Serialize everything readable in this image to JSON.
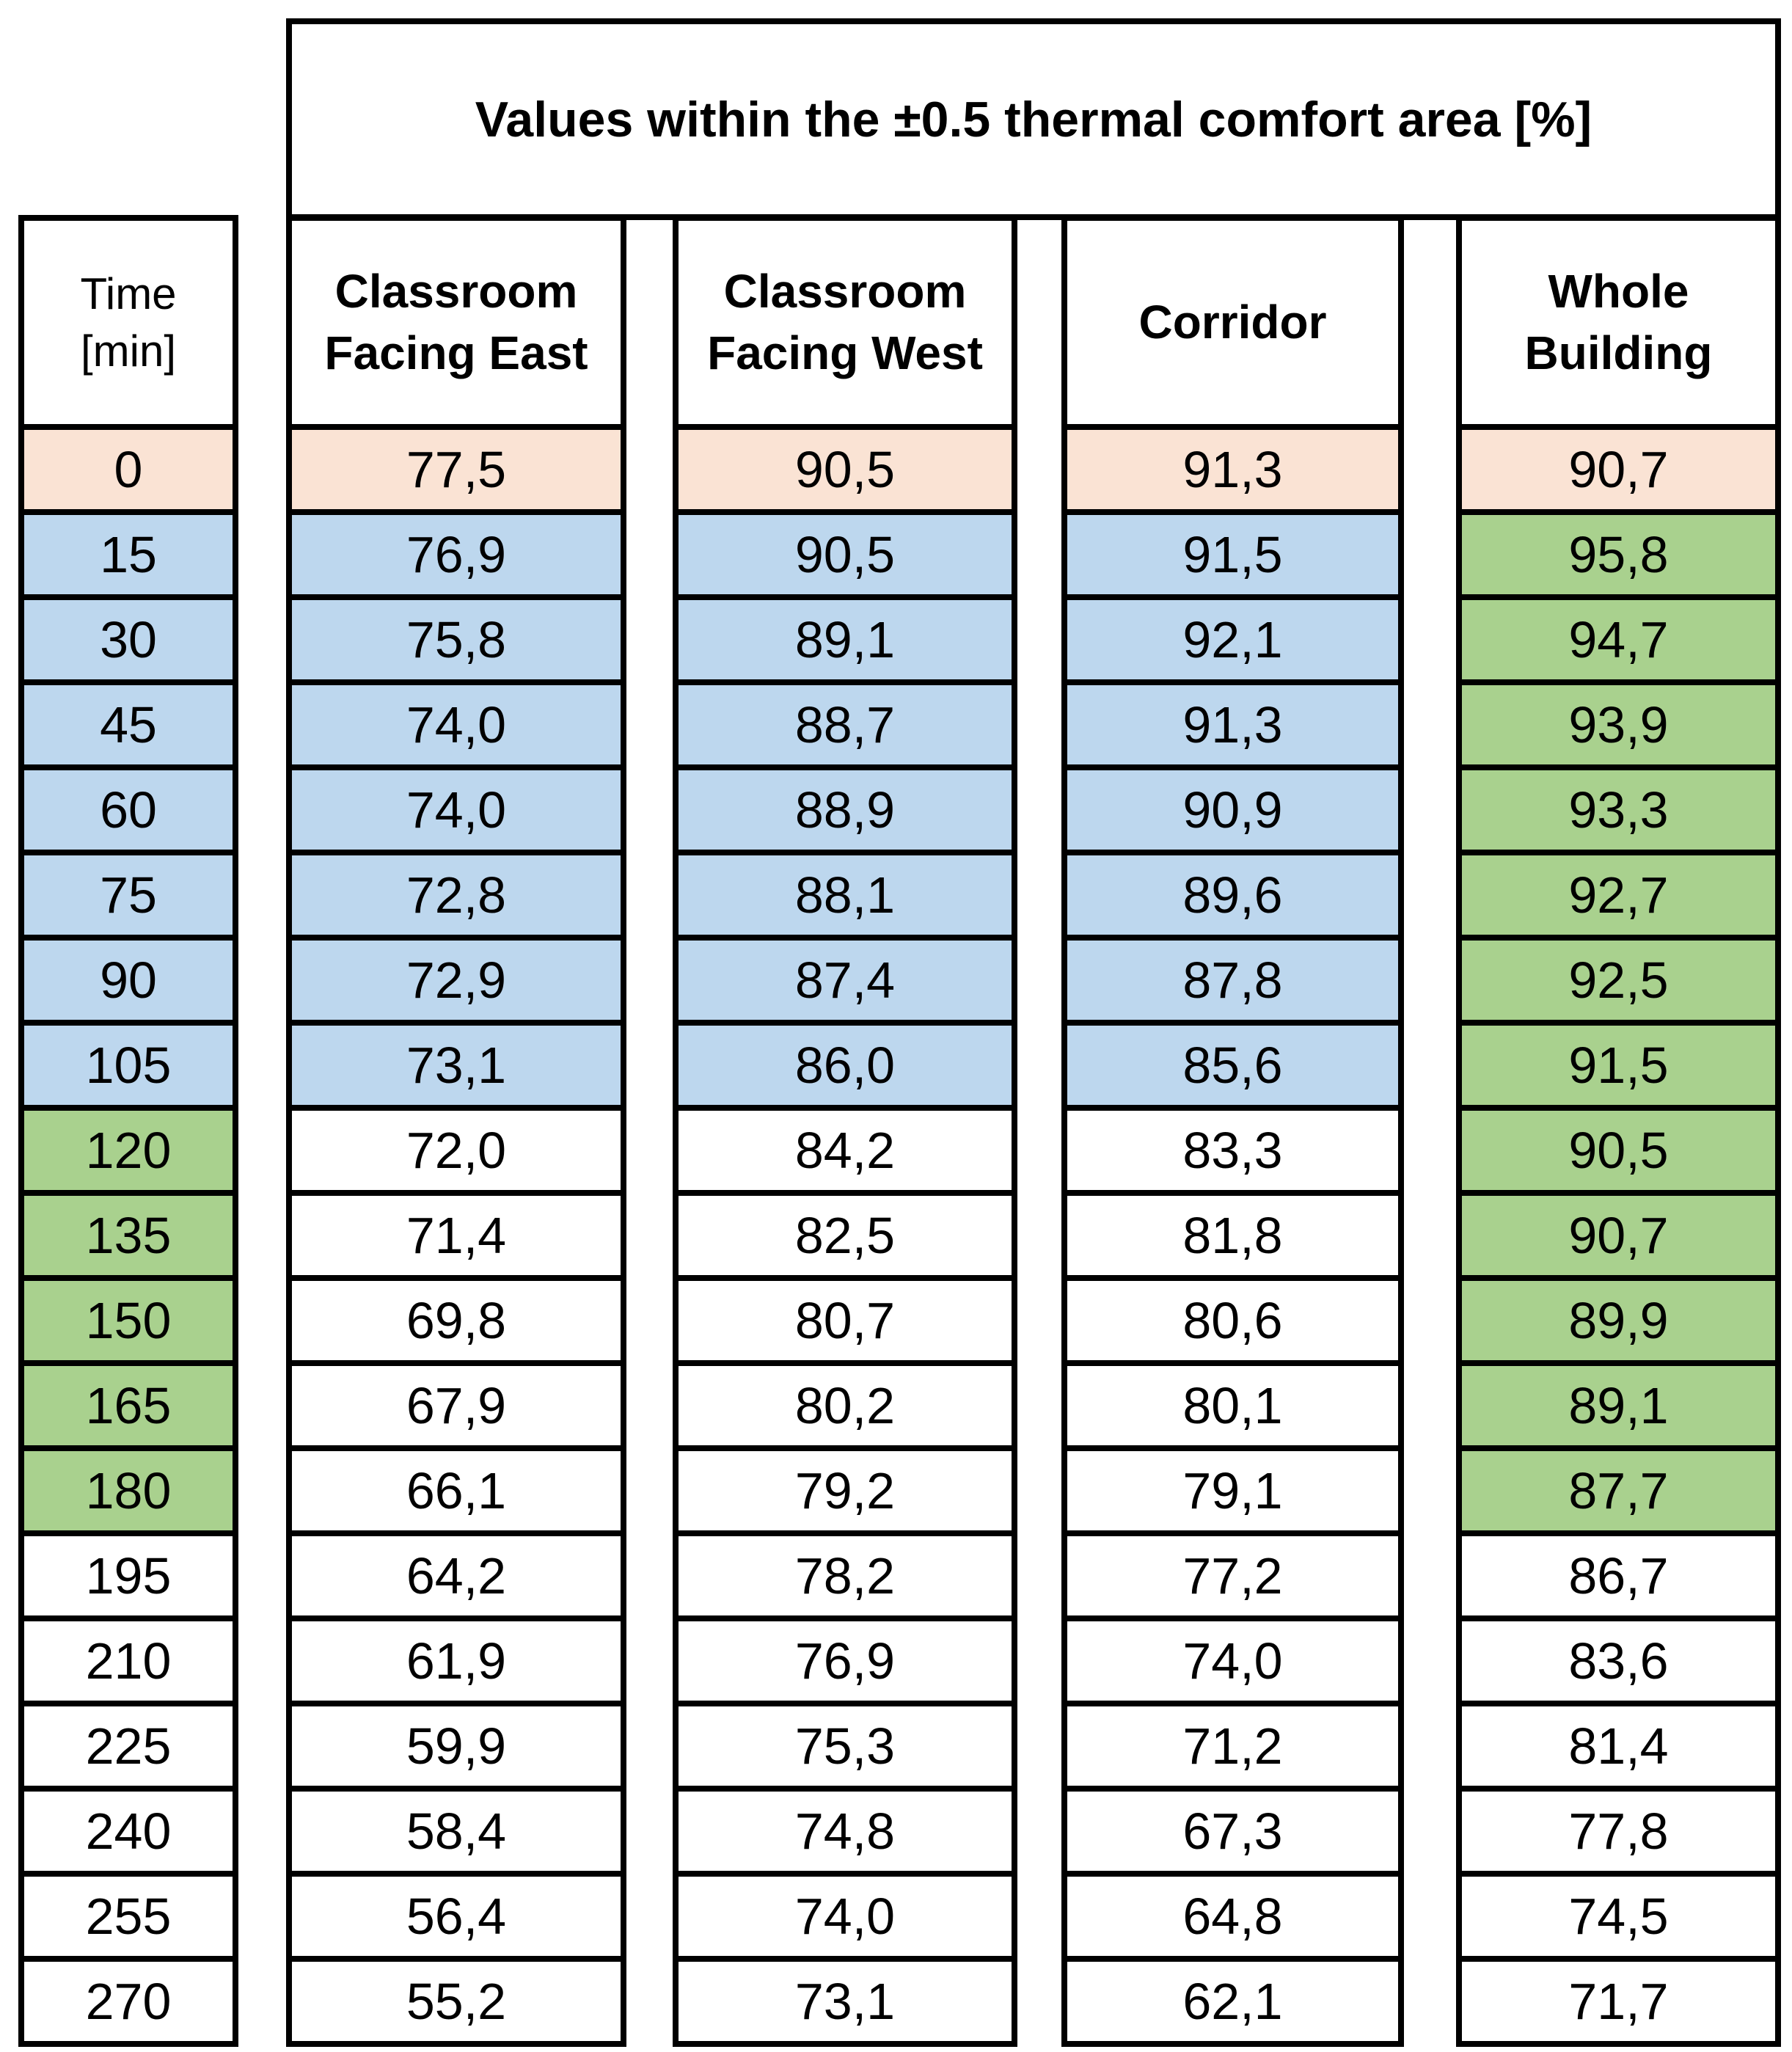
{
  "title": "Values within the ±0.5 thermal comfort area [%]",
  "table": {
    "columns": [
      {
        "id": "time",
        "line1": "Time",
        "line2": "[min]"
      },
      {
        "id": "east",
        "line1": "Classroom",
        "line2": "Facing East"
      },
      {
        "id": "west",
        "line1": "Classroom",
        "line2": "Facing West"
      },
      {
        "id": "corridor",
        "line1": "Corridor",
        "line2": ""
      },
      {
        "id": "whole",
        "line1": "Whole",
        "line2": "Building"
      }
    ],
    "rows": [
      {
        "cells": [
          "0",
          "77,5",
          "90,5",
          "91,3",
          "90,7"
        ],
        "colors": [
          "peach",
          "peach",
          "peach",
          "peach",
          "peach"
        ]
      },
      {
        "cells": [
          "15",
          "76,9",
          "90,5",
          "91,5",
          "95,8"
        ],
        "colors": [
          "blue",
          "blue",
          "blue",
          "blue",
          "green"
        ]
      },
      {
        "cells": [
          "30",
          "75,8",
          "89,1",
          "92,1",
          "94,7"
        ],
        "colors": [
          "blue",
          "blue",
          "blue",
          "blue",
          "green"
        ]
      },
      {
        "cells": [
          "45",
          "74,0",
          "88,7",
          "91,3",
          "93,9"
        ],
        "colors": [
          "blue",
          "blue",
          "blue",
          "blue",
          "green"
        ]
      },
      {
        "cells": [
          "60",
          "74,0",
          "88,9",
          "90,9",
          "93,3"
        ],
        "colors": [
          "blue",
          "blue",
          "blue",
          "blue",
          "green"
        ]
      },
      {
        "cells": [
          "75",
          "72,8",
          "88,1",
          "89,6",
          "92,7"
        ],
        "colors": [
          "blue",
          "blue",
          "blue",
          "blue",
          "green"
        ]
      },
      {
        "cells": [
          "90",
          "72,9",
          "87,4",
          "87,8",
          "92,5"
        ],
        "colors": [
          "blue",
          "blue",
          "blue",
          "blue",
          "green"
        ]
      },
      {
        "cells": [
          "105",
          "73,1",
          "86,0",
          "85,6",
          "91,5"
        ],
        "colors": [
          "blue",
          "blue",
          "blue",
          "blue",
          "green"
        ]
      },
      {
        "cells": [
          "120",
          "72,0",
          "84,2",
          "83,3",
          "90,5"
        ],
        "colors": [
          "green",
          "white",
          "white",
          "white",
          "green"
        ]
      },
      {
        "cells": [
          "135",
          "71,4",
          "82,5",
          "81,8",
          "90,7"
        ],
        "colors": [
          "green",
          "white",
          "white",
          "white",
          "green"
        ]
      },
      {
        "cells": [
          "150",
          "69,8",
          "80,7",
          "80,6",
          "89,9"
        ],
        "colors": [
          "green",
          "white",
          "white",
          "white",
          "green"
        ]
      },
      {
        "cells": [
          "165",
          "67,9",
          "80,2",
          "80,1",
          "89,1"
        ],
        "colors": [
          "green",
          "white",
          "white",
          "white",
          "green"
        ]
      },
      {
        "cells": [
          "180",
          "66,1",
          "79,2",
          "79,1",
          "87,7"
        ],
        "colors": [
          "green",
          "white",
          "white",
          "white",
          "green"
        ]
      },
      {
        "cells": [
          "195",
          "64,2",
          "78,2",
          "77,2",
          "86,7"
        ],
        "colors": [
          "white",
          "white",
          "white",
          "white",
          "white"
        ]
      },
      {
        "cells": [
          "210",
          "61,9",
          "76,9",
          "74,0",
          "83,6"
        ],
        "colors": [
          "white",
          "white",
          "white",
          "white",
          "white"
        ]
      },
      {
        "cells": [
          "225",
          "59,9",
          "75,3",
          "71,2",
          "81,4"
        ],
        "colors": [
          "white",
          "white",
          "white",
          "white",
          "white"
        ]
      },
      {
        "cells": [
          "240",
          "58,4",
          "74,8",
          "67,3",
          "77,8"
        ],
        "colors": [
          "white",
          "white",
          "white",
          "white",
          "white"
        ]
      },
      {
        "cells": [
          "255",
          "56,4",
          "74,0",
          "64,8",
          "74,5"
        ],
        "colors": [
          "white",
          "white",
          "white",
          "white",
          "white"
        ]
      },
      {
        "cells": [
          "270",
          "55,2",
          "73,1",
          "62,1",
          "71,7"
        ],
        "colors": [
          "white",
          "white",
          "white",
          "white",
          "white"
        ]
      }
    ]
  },
  "colors": {
    "peach": "#FAE3D4",
    "blue": "#BDD7EE",
    "green": "#A9D18E",
    "border": "#000000"
  },
  "chart_data": {
    "type": "table",
    "title": "Values within the ±0.5 thermal comfort area [%]",
    "columns": [
      "Time [min]",
      "Classroom Facing East",
      "Classroom Facing West",
      "Corridor",
      "Whole Building"
    ],
    "rows": [
      [
        0,
        77.5,
        90.5,
        91.3,
        90.7
      ],
      [
        15,
        76.9,
        90.5,
        91.5,
        95.8
      ],
      [
        30,
        75.8,
        89.1,
        92.1,
        94.7
      ],
      [
        45,
        74.0,
        88.7,
        91.3,
        93.9
      ],
      [
        60,
        74.0,
        88.9,
        90.9,
        93.3
      ],
      [
        75,
        72.8,
        88.1,
        89.6,
        92.7
      ],
      [
        90,
        72.9,
        87.4,
        87.8,
        92.5
      ],
      [
        105,
        73.1,
        86.0,
        85.6,
        91.5
      ],
      [
        120,
        72.0,
        84.2,
        83.3,
        90.5
      ],
      [
        135,
        71.4,
        82.5,
        81.8,
        90.7
      ],
      [
        150,
        69.8,
        80.7,
        80.6,
        89.9
      ],
      [
        165,
        67.9,
        80.2,
        80.1,
        89.1
      ],
      [
        180,
        66.1,
        79.2,
        79.1,
        87.7
      ],
      [
        195,
        64.2,
        78.2,
        77.2,
        86.7
      ],
      [
        210,
        61.9,
        76.9,
        74.0,
        83.6
      ],
      [
        225,
        59.9,
        75.3,
        71.2,
        81.4
      ],
      [
        240,
        58.4,
        74.8,
        67.3,
        77.8
      ],
      [
        255,
        56.4,
        74.0,
        64.8,
        74.5
      ],
      [
        270,
        55.2,
        73.1,
        62.1,
        71.7
      ]
    ],
    "highlights": {
      "row_0": "peach across all columns",
      "rows_15_to_105": "blue in Time/East/West/Corridor, green in Whole Building",
      "rows_120_to_180": "green in Time column and Whole Building, white elsewhere",
      "rows_195_to_270": "no fill"
    }
  }
}
